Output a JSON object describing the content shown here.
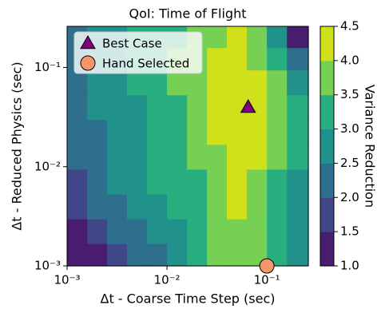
{
  "chart_data": {
    "type": "contour",
    "title": "QoI: Time of Flight",
    "x_label": "Δt - Coarse Time Step (sec)",
    "y_label": "Δt - Reduced Physics (sec)",
    "x_scale": "log",
    "y_scale": "log",
    "xlim": [
      0.001,
      0.26
    ],
    "ylim": [
      0.001,
      0.26
    ],
    "xticks": [
      {
        "value": 0.001,
        "label": "10⁻³"
      },
      {
        "value": 0.01,
        "label": "10⁻²"
      },
      {
        "value": 0.1,
        "label": "10⁻¹"
      }
    ],
    "yticks": [
      {
        "value": 0.001,
        "label": "10⁻³"
      },
      {
        "value": 0.01,
        "label": "10⁻²"
      },
      {
        "value": 0.1,
        "label": "10⁻¹"
      }
    ],
    "x": [
      0.00126,
      0.002,
      0.00316,
      0.005,
      0.00794,
      0.0126,
      0.02,
      0.0316,
      0.05,
      0.0794,
      0.126,
      0.2
    ],
    "y": [
      0.00126,
      0.00224,
      0.00398,
      0.00708,
      0.0126,
      0.0224,
      0.0398,
      0.0708,
      0.126,
      0.2
    ],
    "z": [
      [
        1.2,
        1.3,
        1.6,
        2.0,
        2.3,
        2.8,
        3.2,
        3.6,
        3.8,
        3.6,
        3.2,
        2.6
      ],
      [
        1.4,
        1.7,
        2.0,
        2.3,
        2.6,
        2.9,
        3.2,
        3.6,
        3.9,
        3.7,
        3.2,
        2.7
      ],
      [
        1.7,
        2.0,
        2.3,
        2.6,
        2.8,
        3.0,
        3.3,
        3.7,
        4.1,
        3.8,
        3.3,
        2.8
      ],
      [
        1.9,
        2.2,
        2.5,
        2.8,
        3.0,
        3.2,
        3.4,
        3.8,
        4.2,
        3.9,
        3.4,
        2.9
      ],
      [
        2.1,
        2.3,
        2.6,
        2.9,
        3.1,
        3.3,
        3.6,
        3.9,
        4.2,
        4.0,
        3.5,
        3.0
      ],
      [
        2.3,
        2.4,
        2.7,
        2.9,
        3.1,
        3.3,
        3.7,
        4.1,
        4.3,
        4.1,
        3.6,
        3.0
      ],
      [
        2.4,
        2.5,
        2.7,
        2.9,
        3.1,
        3.4,
        3.8,
        4.1,
        4.3,
        4.1,
        3.6,
        3.0
      ],
      [
        2.4,
        2.6,
        2.8,
        3.0,
        3.2,
        3.5,
        3.8,
        4.1,
        4.3,
        4.1,
        3.6,
        2.8
      ],
      [
        2.3,
        2.6,
        2.8,
        3.0,
        3.3,
        3.5,
        3.8,
        4.0,
        4.2,
        3.9,
        3.3,
        2.4
      ],
      [
        2.2,
        2.5,
        2.8,
        3.0,
        3.2,
        3.4,
        3.7,
        3.9,
        4.1,
        3.8,
        2.9,
        1.3
      ]
    ],
    "colorbar": {
      "label": "Variance Reduction",
      "levels": [
        1.0,
        1.5,
        2.0,
        2.5,
        3.0,
        3.5,
        4.0,
        4.5
      ],
      "colors": [
        "#481d6f",
        "#3f4788",
        "#2e6f8e",
        "#21918c",
        "#29af7f",
        "#75d054",
        "#d0e11c"
      ],
      "ticks": [
        {
          "value": 1.0,
          "label": "1.0"
        },
        1.5,
        {
          "value": 2.0,
          "label": "2.0"
        },
        2.5,
        {
          "value": 3.0,
          "label": "3.0"
        },
        3.5,
        {
          "value": 4.0,
          "label": "4.0"
        },
        4.5
      ]
    },
    "points": [
      {
        "name": "Best Case",
        "x": 0.065,
        "y": 0.04,
        "marker": "triangle",
        "color": "#800080"
      },
      {
        "name": "Hand Selected",
        "x": 0.1,
        "y": 0.001,
        "marker": "circle",
        "color": "#f4956a"
      }
    ],
    "legend": "upper left"
  }
}
